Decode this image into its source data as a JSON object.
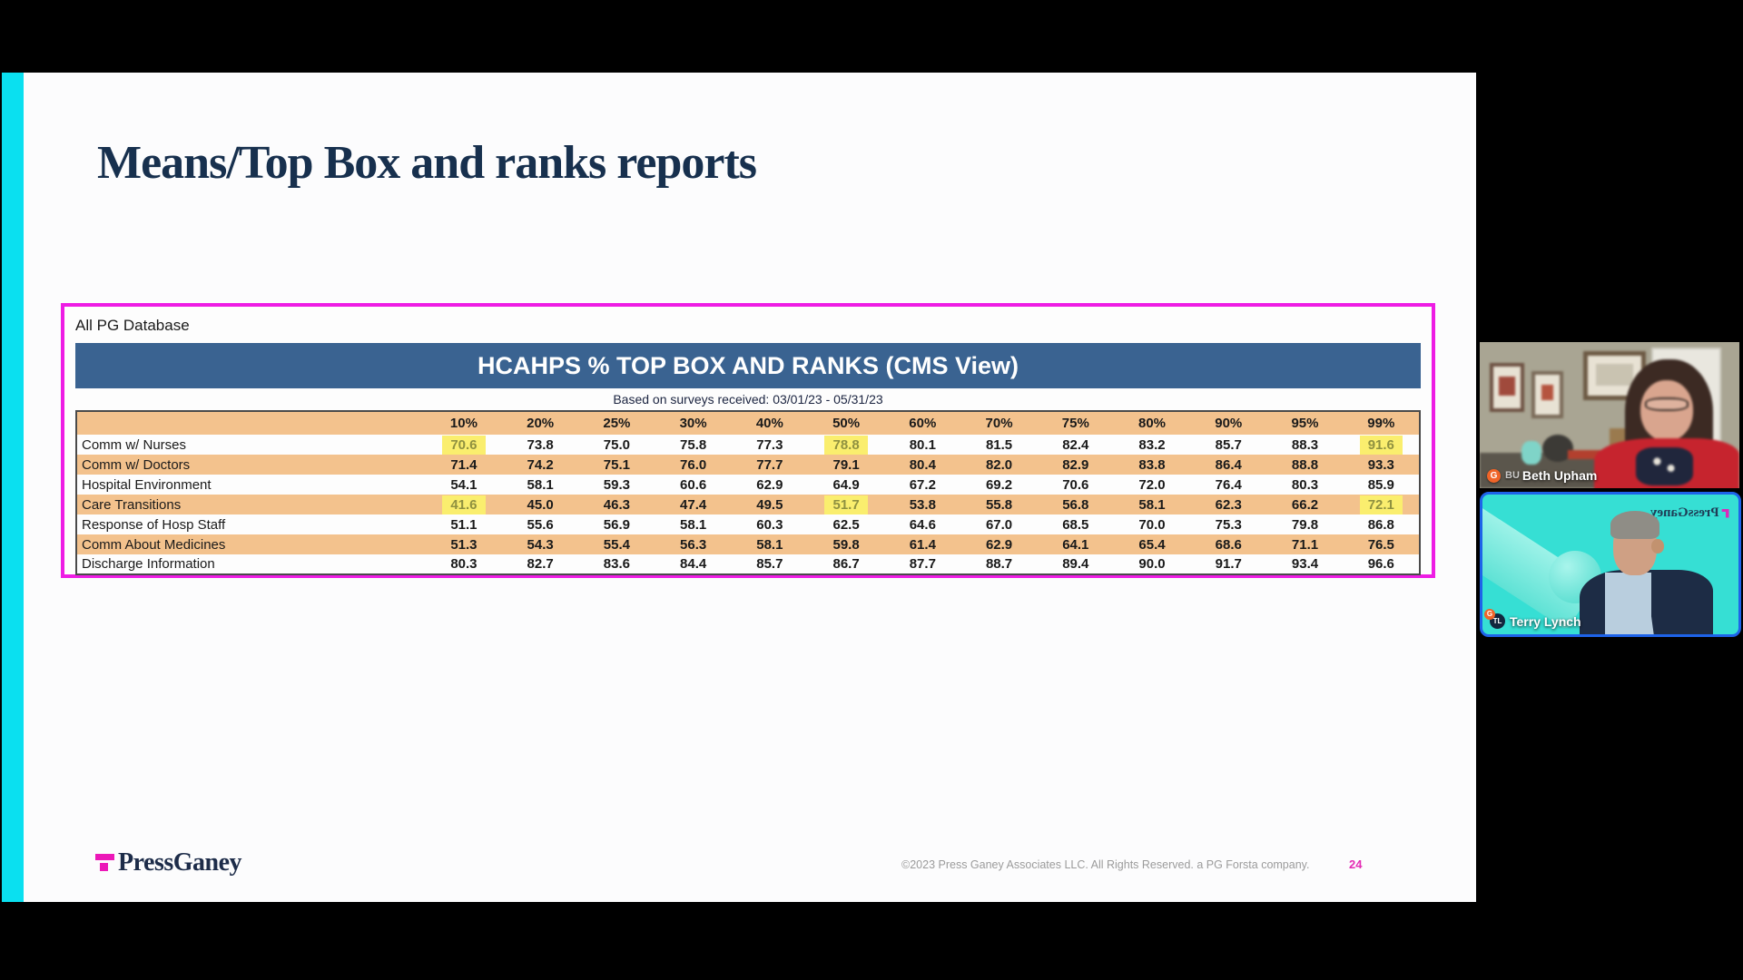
{
  "slide": {
    "title": "Means/Top Box and ranks reports",
    "database_label": "All PG Database",
    "table_title": "HCAHPS % TOP BOX AND RANKS (CMS View)",
    "table_subtitle": "Based on surveys received: 03/01/23 - 05/31/23",
    "footer": {
      "logo_text": "PressGaney",
      "copyright": "©2023 Press Ganey Associates LLC. All Rights Reserved. a PG Forsta company.",
      "page_number": "24"
    }
  },
  "chart_data": {
    "type": "table",
    "title": "HCAHPS % TOP BOX AND RANKS (CMS View)",
    "subtitle": "Based on surveys received: 03/01/23 - 05/31/23",
    "columns": [
      "10%",
      "20%",
      "25%",
      "30%",
      "40%",
      "50%",
      "60%",
      "70%",
      "75%",
      "80%",
      "90%",
      "95%",
      "99%"
    ],
    "rows": [
      {
        "label": "Comm w/ Nurses",
        "values": [
          "70.6",
          "73.8",
          "75.0",
          "75.8",
          "77.3",
          "78.8",
          "80.1",
          "81.5",
          "82.4",
          "83.2",
          "85.7",
          "88.3",
          "91.6"
        ],
        "highlights": [
          0,
          5,
          12
        ]
      },
      {
        "label": "Comm w/ Doctors",
        "values": [
          "71.4",
          "74.2",
          "75.1",
          "76.0",
          "77.7",
          "79.1",
          "80.4",
          "82.0",
          "82.9",
          "83.8",
          "86.4",
          "88.8",
          "93.3"
        ],
        "highlights": []
      },
      {
        "label": "Hospital Environment",
        "values": [
          "54.1",
          "58.1",
          "59.3",
          "60.6",
          "62.9",
          "64.9",
          "67.2",
          "69.2",
          "70.6",
          "72.0",
          "76.4",
          "80.3",
          "85.9"
        ],
        "highlights": []
      },
      {
        "label": "Care Transitions",
        "values": [
          "41.6",
          "45.0",
          "46.3",
          "47.4",
          "49.5",
          "51.7",
          "53.8",
          "55.8",
          "56.8",
          "58.1",
          "62.3",
          "66.2",
          "72.1"
        ],
        "highlights": [
          0,
          5,
          12
        ]
      },
      {
        "label": "Response of Hosp Staff",
        "values": [
          "51.1",
          "55.6",
          "56.9",
          "58.1",
          "60.3",
          "62.5",
          "64.6",
          "67.0",
          "68.5",
          "70.0",
          "75.3",
          "79.8",
          "86.8"
        ],
        "highlights": []
      },
      {
        "label": "Comm About Medicines",
        "values": [
          "51.3",
          "54.3",
          "55.4",
          "56.3",
          "58.1",
          "59.8",
          "61.4",
          "62.9",
          "64.1",
          "65.4",
          "68.6",
          "71.1",
          "76.5"
        ],
        "highlights": []
      },
      {
        "label": "Discharge Information",
        "values": [
          "80.3",
          "82.7",
          "83.6",
          "84.4",
          "85.7",
          "86.7",
          "87.7",
          "88.7",
          "89.4",
          "90.0",
          "91.7",
          "93.4",
          "96.6"
        ],
        "highlights": []
      }
    ]
  },
  "participants": [
    {
      "name": "Beth Upham",
      "initials": "BU",
      "badge": "G"
    },
    {
      "name": "Terry Lynch",
      "initials": "TL",
      "badge": "G",
      "background_logo": "PressGaney"
    }
  ],
  "colors": {
    "table_border_magenta": "#ee1ce4",
    "header_blue": "#3a6391",
    "row_orange": "#f3c28d",
    "highlight_yellow": "#faee6e",
    "highlight_text_olive": "#8f9140",
    "title_navy": "#17304e",
    "slide_accent_cyan": "#0ae0f0",
    "logo_magenta": "#ec18b8",
    "page_number_pink": "#e42ab4",
    "active_speaker_border": "#1e63e9",
    "virtual_bg_teal": "#36dfd4",
    "badge_orange": "#f06428"
  }
}
